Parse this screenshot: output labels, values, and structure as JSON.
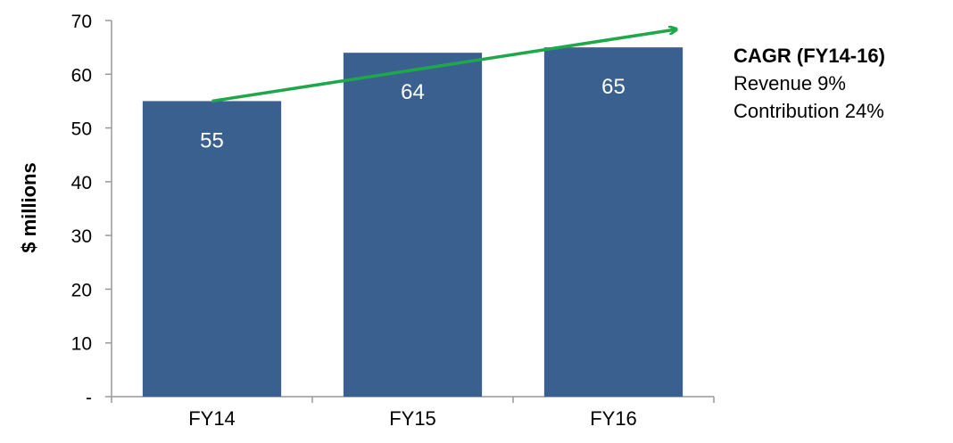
{
  "chart_data": {
    "type": "bar",
    "categories": [
      "FY14",
      "FY15",
      "FY16"
    ],
    "values": [
      55,
      64,
      65
    ],
    "data_labels": [
      "55",
      "64",
      "65"
    ],
    "ylabel": "$ millions",
    "ylim": [
      0,
      70
    ],
    "y_ticks": [
      0,
      10,
      20,
      30,
      40,
      50,
      60,
      70
    ],
    "y_tick_labels": [
      "-",
      "10",
      "20",
      "30",
      "40",
      "50",
      "60",
      "70"
    ],
    "grid": false,
    "bar_color": "#3A6090",
    "trend_arrow": {
      "from": "FY14",
      "to": "FY16",
      "color": "#1FA84A"
    }
  },
  "annotation": {
    "title": "CAGR (FY14-16)",
    "lines": [
      "Revenue  9%",
      "Contribution  24%"
    ]
  }
}
